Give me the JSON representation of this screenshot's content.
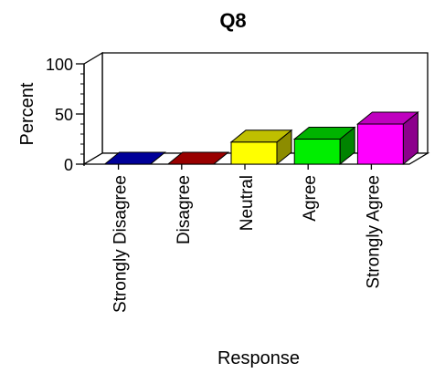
{
  "chart_data": {
    "type": "bar",
    "title": "Q8",
    "xlabel": "Response",
    "ylabel": "Percent",
    "categories": [
      "Strongly Disagree",
      "Disagree",
      "Neutral",
      "Agree",
      "Strongly Agree"
    ],
    "values": [
      0,
      0,
      22,
      25,
      40
    ],
    "colors": [
      "#0000cc",
      "#cc0000",
      "#ffff00",
      "#00ee00",
      "#ff00ff"
    ],
    "ylim": [
      0,
      100
    ],
    "yticks": [
      "0",
      "50",
      "100"
    ],
    "minor_ytick_step": 10,
    "grid": false,
    "legend": "none",
    "style": "3d"
  }
}
